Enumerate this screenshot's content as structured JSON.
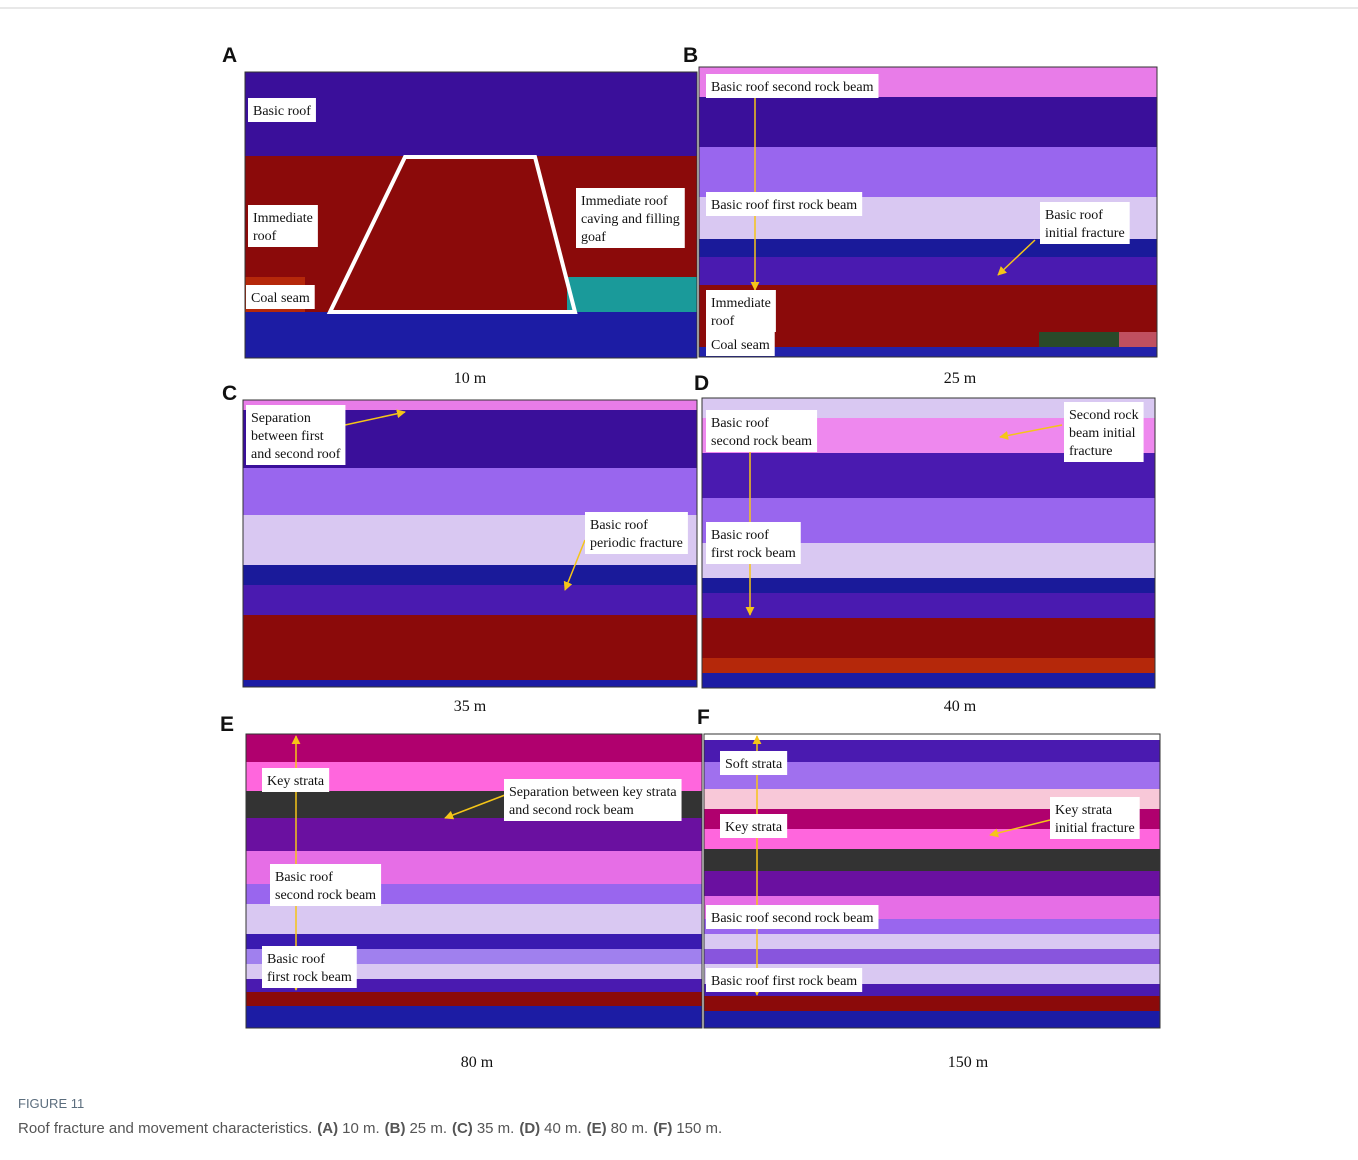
{
  "panels": [
    {
      "letter": "A",
      "caption": "10 m",
      "labels": [
        [
          "Basic roof"
        ],
        [
          "Immediate",
          "roof"
        ],
        [
          "Coal seam"
        ],
        [
          "Immediate roof",
          "caving and filling",
          "goaf"
        ]
      ]
    },
    {
      "letter": "B",
      "caption": "25 m",
      "labels": [
        [
          "Basic roof second rock beam"
        ],
        [
          "Basic roof first rock beam"
        ],
        [
          "Basic roof",
          "initial  fracture"
        ],
        [
          "Immediate",
          "roof"
        ],
        [
          "Coal seam"
        ]
      ]
    },
    {
      "letter": "C",
      "caption": "35 m",
      "labels": [
        [
          "Separation",
          "between first",
          "and second roof"
        ],
        [
          "Basic roof",
          "periodic fracture"
        ]
      ]
    },
    {
      "letter": "D",
      "caption": "40 m",
      "labels": [
        [
          "Basic roof",
          "second rock beam"
        ],
        [
          "Second rock",
          "beam initial",
          "fracture"
        ],
        [
          "Basic roof",
          "first rock beam"
        ]
      ]
    },
    {
      "letter": "E",
      "caption": "80 m",
      "labels": [
        [
          "Key strata"
        ],
        [
          "Separation between key strata",
          "and second rock beam"
        ],
        [
          "Basic roof",
          "second rock beam"
        ],
        [
          "Basic roof",
          "first rock beam"
        ]
      ]
    },
    {
      "letter": "F",
      "caption": "150 m",
      "labels": [
        [
          "Soft strata"
        ],
        [
          "Key strata"
        ],
        [
          "Key strata",
          "initial fracture"
        ],
        [
          "Basic roof second rock beam"
        ],
        [
          "Basic roof first rock beam"
        ]
      ]
    }
  ],
  "figure": {
    "label": "FIGURE 11",
    "text": "Roof fracture and movement characteristics.",
    "items": [
      {
        "letter": "(A)",
        "text": "10 m."
      },
      {
        "letter": "(B)",
        "text": "25 m."
      },
      {
        "letter": "(C)",
        "text": "35 m."
      },
      {
        "letter": "(D)",
        "text": "40 m."
      },
      {
        "letter": "(E)",
        "text": "80 m."
      },
      {
        "letter": "(F)",
        "text": "150 m."
      }
    ]
  }
}
